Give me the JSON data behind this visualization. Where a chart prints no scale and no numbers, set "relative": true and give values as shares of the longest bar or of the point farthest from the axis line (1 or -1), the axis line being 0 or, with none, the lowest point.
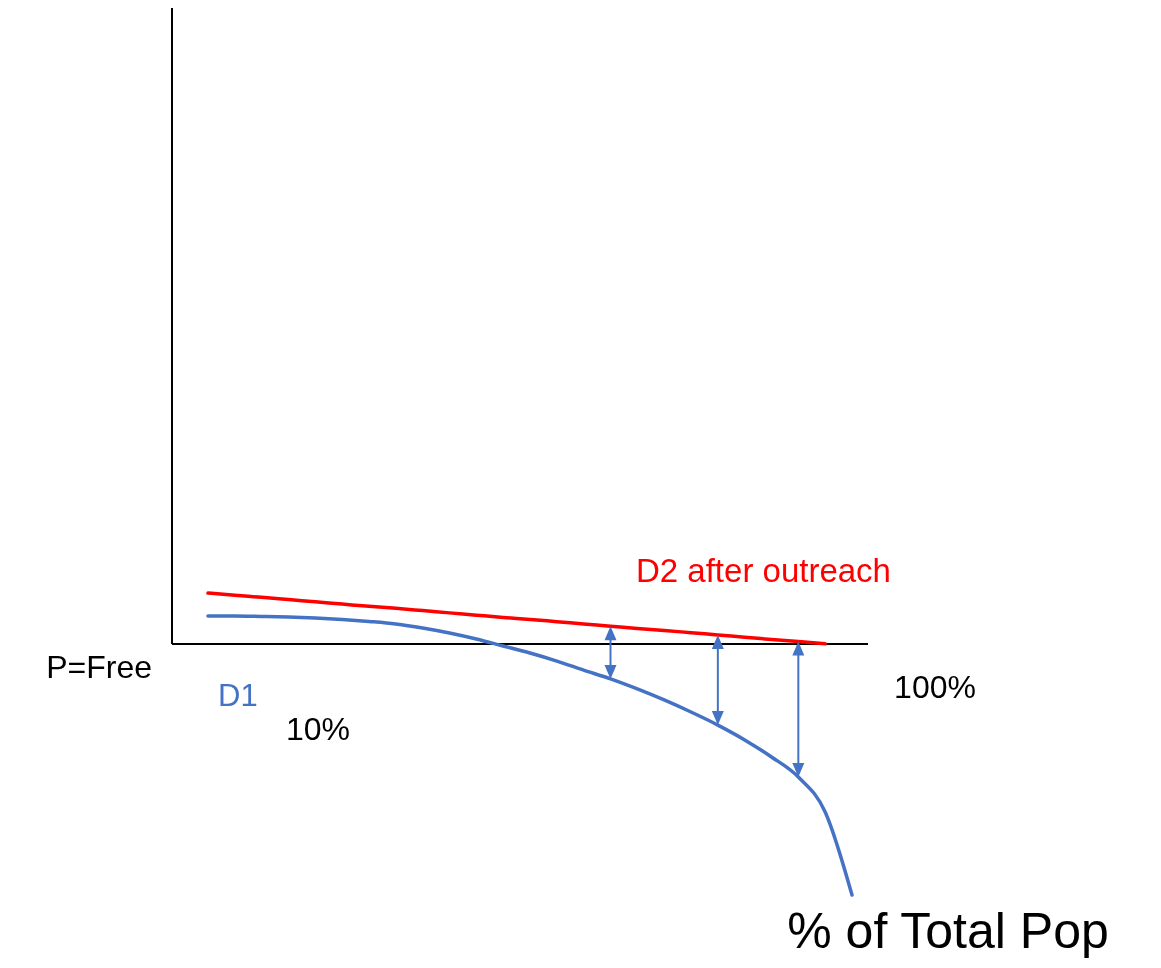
{
  "chart_data": {
    "type": "line",
    "relative": true,
    "xlabel": "% of Total Pop",
    "annotations": [
      "P=Free",
      "10%",
      "100%"
    ],
    "categories": [
      null,
      null,
      null,
      null,
      null,
      null,
      null,
      null,
      null,
      null,
      null,
      null,
      null,
      null,
      null,
      null,
      null,
      null,
      null,
      null,
      null,
      null,
      null,
      null,
      null
    ],
    "series": [
      {
        "name": "D1",
        "color": "#4472c4",
        "values": [
          0.112,
          0.112,
          0.11,
          0.108,
          0.104,
          0.098,
          0.09,
          0.08,
          0.064,
          0.044,
          0.02,
          -0.008,
          -0.036,
          -0.068,
          -0.104,
          -0.139,
          -0.179,
          -0.223,
          -0.271,
          -0.323,
          -0.382,
          -0.45,
          -0.53,
          -0.669,
          -1
        ]
      },
      {
        "name": "D2 after outreach",
        "color": "#ff0000",
        "values": [
          0.203,
          0.194,
          0.186,
          0.177,
          0.168,
          0.159,
          0.15,
          0.142,
          0.133,
          0.124,
          0.115,
          0.106,
          0.098,
          0.089,
          0.08,
          0.071,
          0.062,
          0.054,
          0.045,
          0.036,
          0.027,
          0.018,
          0.01,
          0.001,
          null
        ]
      }
    ]
  }
}
